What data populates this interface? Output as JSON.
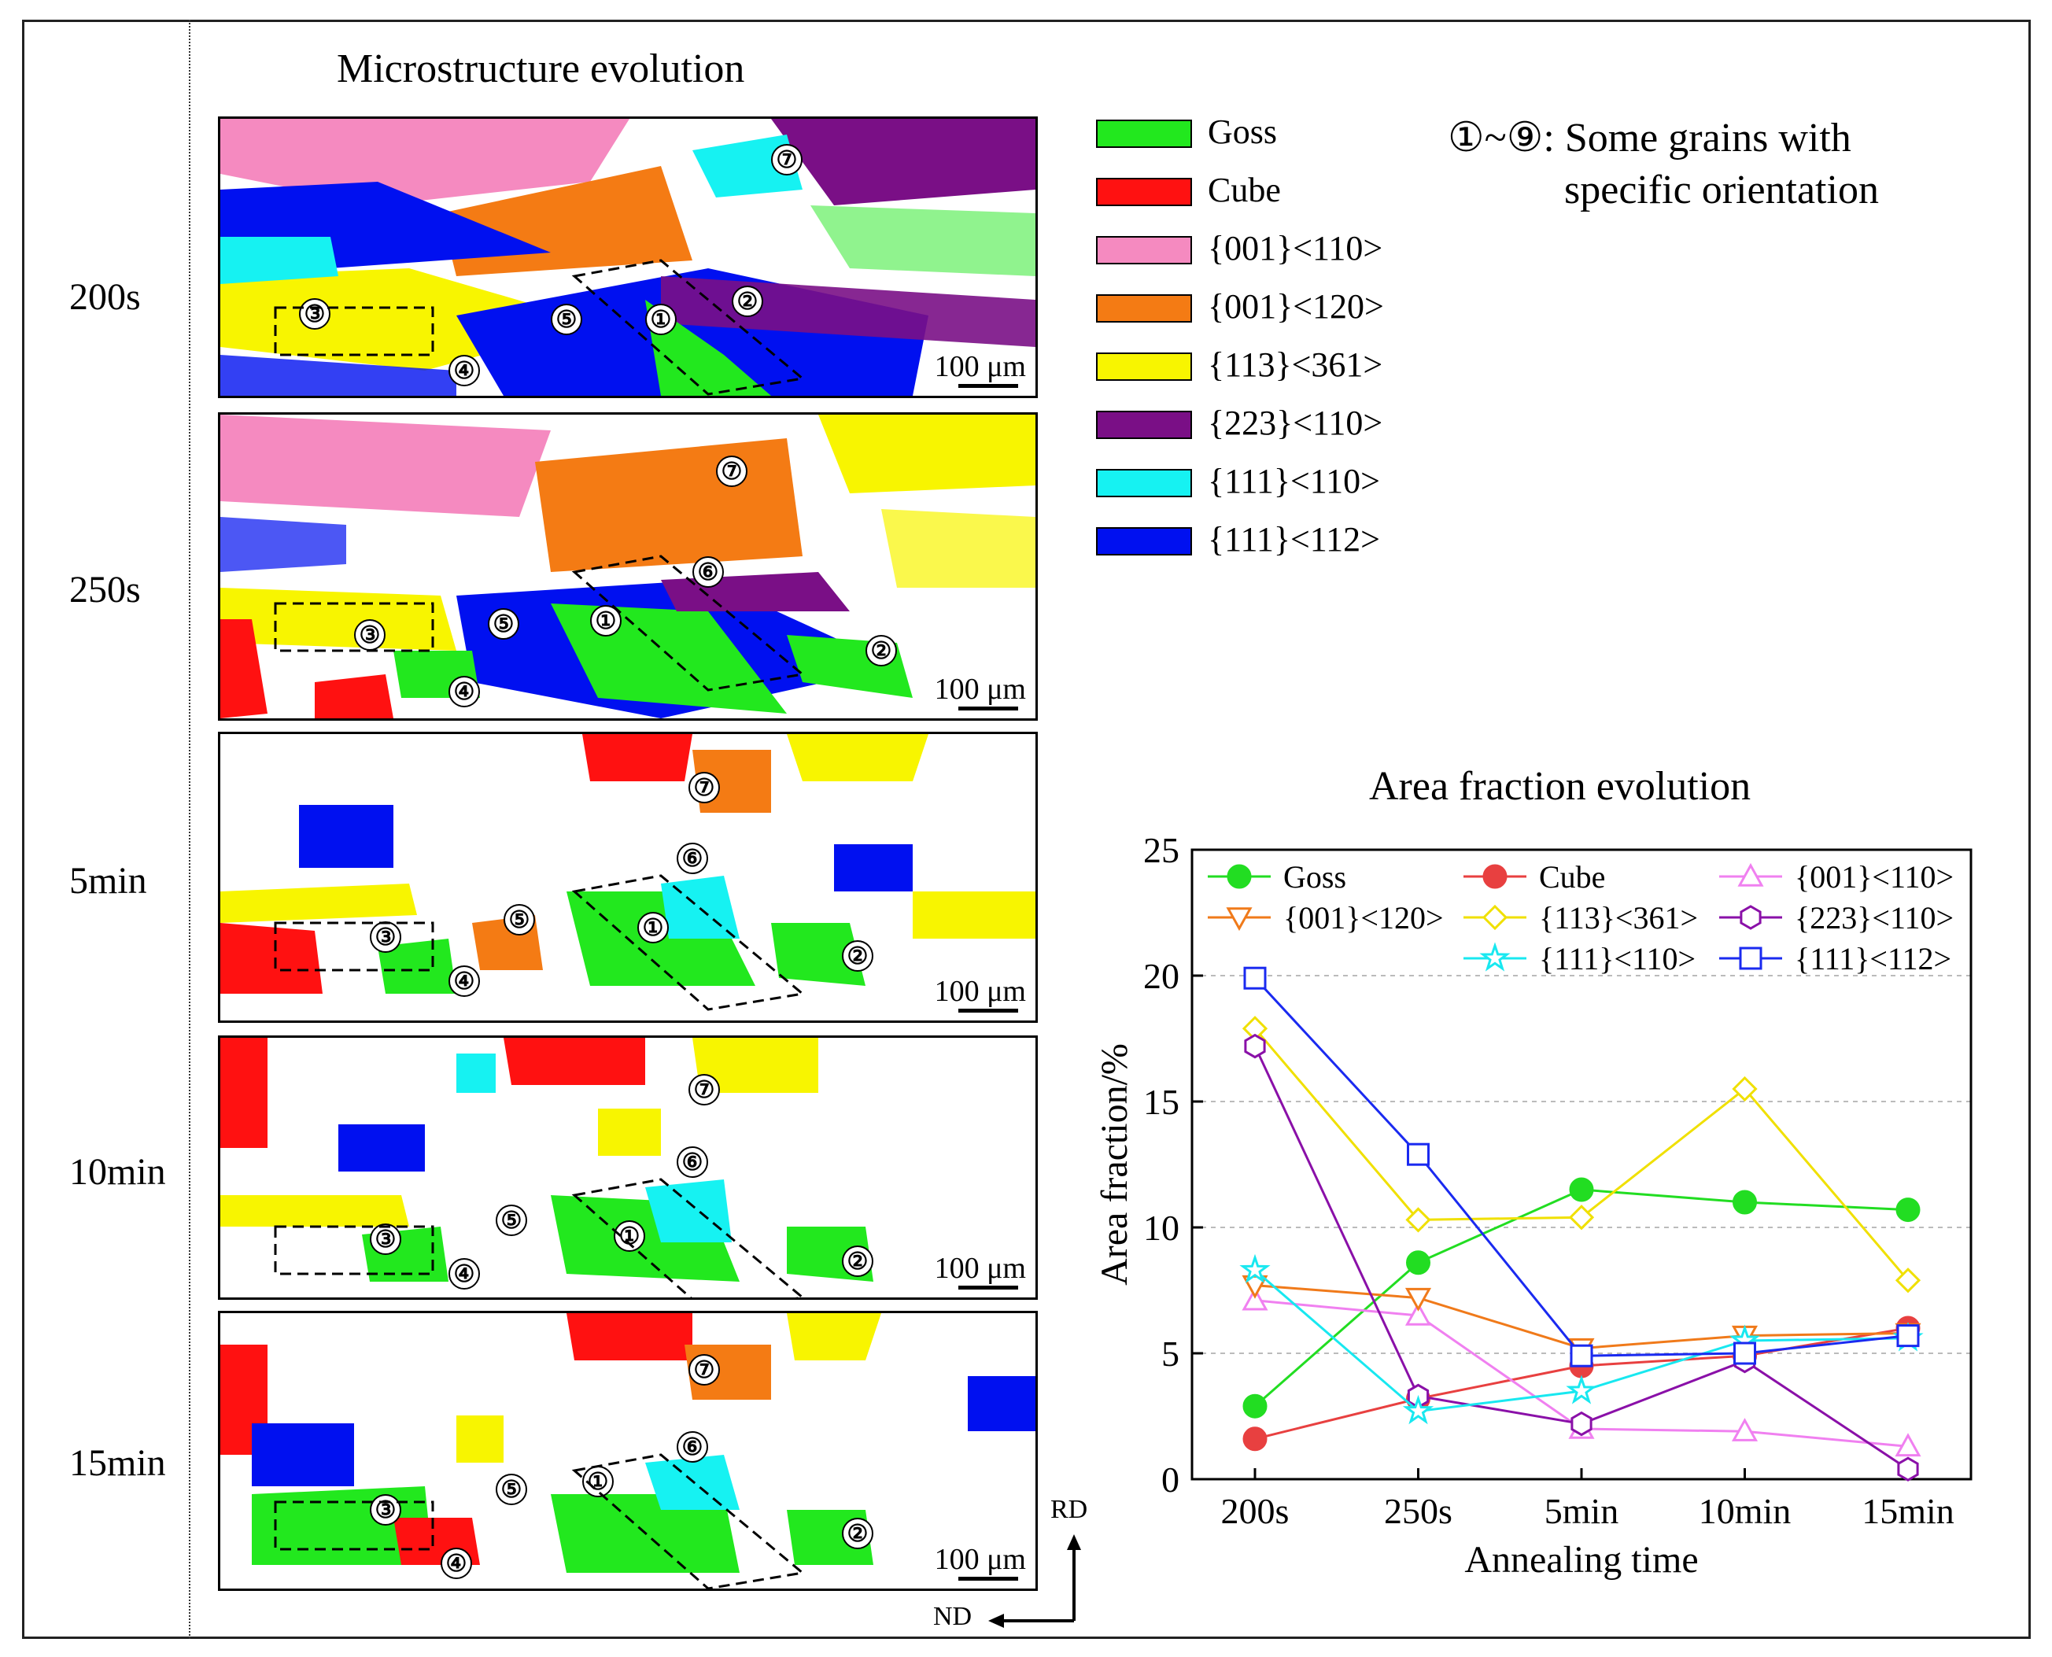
{
  "left_title": "Microstructure evolution",
  "panels": [
    {
      "time": "200s",
      "markers": [
        "⑦",
        "③",
        "⑤",
        "①",
        "②",
        "④"
      ],
      "scale": "100 μm"
    },
    {
      "time": "250s",
      "markers": [
        "⑦",
        "⑥",
        "①",
        "⑤",
        "③",
        "②",
        "④"
      ],
      "scale": "100 μm"
    },
    {
      "time": "5min",
      "markers": [
        "⑦",
        "⑥",
        "⑤",
        "③",
        "①",
        "②",
        "④"
      ],
      "scale": "100 μm"
    },
    {
      "time": "10min",
      "markers": [
        "⑦",
        "⑥",
        "⑤",
        "③",
        "①",
        "②",
        "④"
      ],
      "scale": "100 μm"
    },
    {
      "time": "15min",
      "markers": [
        "⑦",
        "⑥",
        "⑤",
        "①",
        "③",
        "②",
        "④"
      ],
      "scale": "100 μm"
    }
  ],
  "orientation_legend": [
    {
      "label": "Goss",
      "color": "#22e81e"
    },
    {
      "label": "Cube",
      "color": "#ff1111"
    },
    {
      "label": "{001}<110>",
      "color": "#f58ac0"
    },
    {
      "label": "{001}<120>",
      "color": "#f47b14"
    },
    {
      "label": "{113}<361>",
      "color": "#f8f500"
    },
    {
      "label": "{223}<110>",
      "color": "#7a0f86"
    },
    {
      "label": "{111}<110>",
      "color": "#16f2f2"
    },
    {
      "label": "{111}<112>",
      "color": "#0010f0"
    }
  ],
  "note": {
    "line1": "①~⑨: Some grains with",
    "line2": "specific orientation"
  },
  "axes_labels": {
    "rd": "RD",
    "nd": "ND"
  },
  "chart_data": {
    "type": "line",
    "title": "Area fraction evolution",
    "xlabel": "Annealing time",
    "ylabel": "Area fraction/%",
    "categories": [
      "200s",
      "250s",
      "5min",
      "10min",
      "15min"
    ],
    "ylim": [
      0,
      25
    ],
    "yticks": [
      0,
      5,
      10,
      15,
      20,
      25
    ],
    "grid": "horizontal dashed",
    "legend_position": "top",
    "series": [
      {
        "name": "Goss",
        "color": "#22dd22",
        "marker": "filled-circle",
        "values": [
          2.9,
          8.6,
          11.5,
          11.0,
          10.7
        ]
      },
      {
        "name": "Cube",
        "color": "#e84040",
        "marker": "filled-circle",
        "values": [
          1.6,
          3.2,
          4.5,
          4.9,
          6.0
        ]
      },
      {
        "name": "{001}<110>",
        "color": "#f080f0",
        "marker": "triangle-up",
        "values": [
          7.1,
          6.5,
          2.0,
          1.9,
          1.3
        ]
      },
      {
        "name": "{001}<120>",
        "color": "#f07a1a",
        "marker": "triangle-down",
        "values": [
          7.7,
          7.2,
          5.2,
          5.7,
          5.8
        ]
      },
      {
        "name": "{113}<361>",
        "color": "#f0e000",
        "marker": "diamond",
        "values": [
          17.9,
          10.3,
          10.4,
          15.5,
          7.9
        ]
      },
      {
        "name": "{223}<110>",
        "color": "#8a10a8",
        "marker": "hexagon",
        "values": [
          17.2,
          3.3,
          2.2,
          4.7,
          0.4
        ]
      },
      {
        "name": "{111}<110>",
        "color": "#18e8f0",
        "marker": "star",
        "values": [
          8.3,
          2.7,
          3.5,
          5.5,
          5.6
        ]
      },
      {
        "name": "{111}<112>",
        "color": "#1a2af0",
        "marker": "square",
        "values": [
          19.9,
          12.9,
          4.9,
          5.0,
          5.7
        ]
      }
    ]
  }
}
